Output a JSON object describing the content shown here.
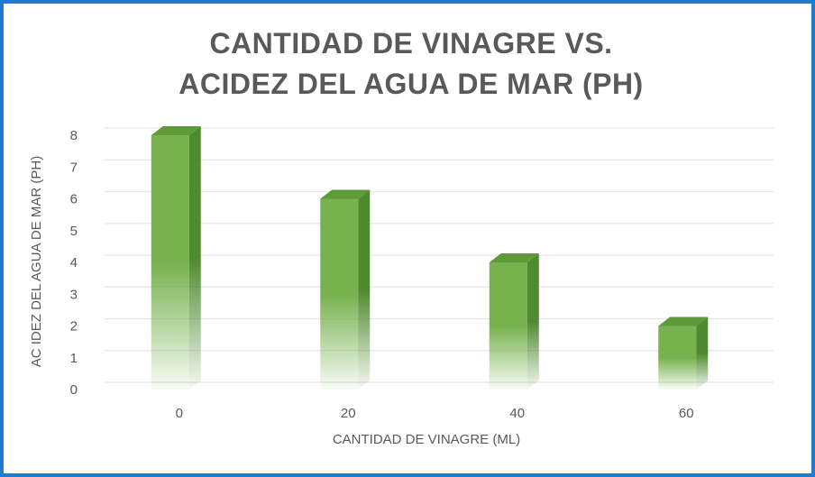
{
  "chart_data": {
    "type": "bar",
    "title_lines": [
      "CANTIDAD DE VINAGRE VS.",
      "ACIDEZ DEL AGUA DE MAR (PH)"
    ],
    "categories": [
      "0",
      "20",
      "40",
      "60"
    ],
    "series": [
      {
        "name": "Acidez del agua de mar (pH)",
        "values": [
          8,
          6,
          4,
          2
        ]
      }
    ],
    "xlabel": "CANTIDAD DE VINAGRE (ML)",
    "ylabel": "AC IDEZ DEL AGUA DE MAR (PH)",
    "ylim": [
      0,
      8
    ],
    "yticks": [
      0,
      1,
      2,
      3,
      4,
      5,
      6,
      7,
      8
    ],
    "grid": true,
    "legend": "none"
  },
  "colors": {
    "border": "#1f7bd0",
    "bar_front": "#77b24e",
    "bar_side": "#4f8a2f",
    "bar_top": "#5f9a3a",
    "text": "#595959",
    "grid": "#e6e6e6"
  }
}
